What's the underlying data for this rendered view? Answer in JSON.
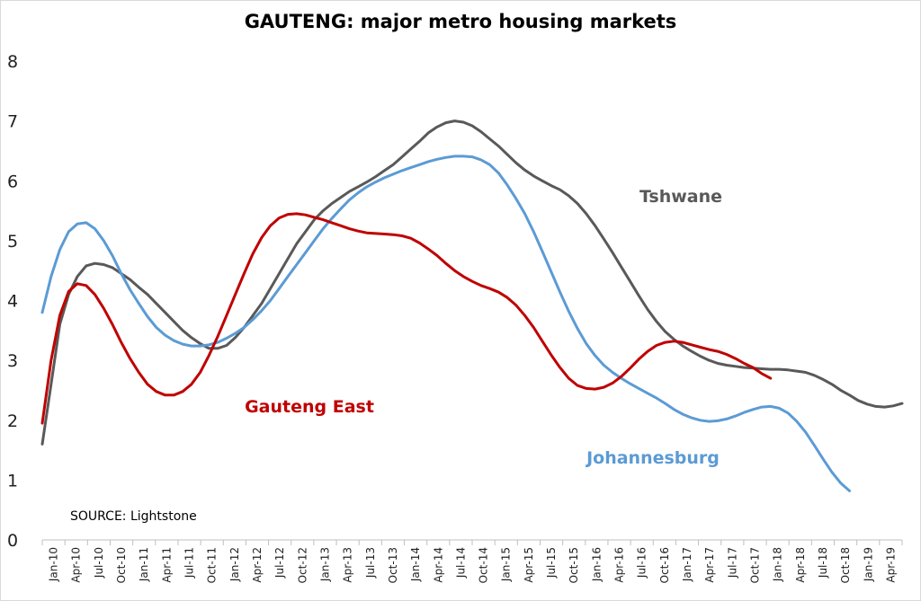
{
  "chart_data": {
    "type": "line",
    "title": "GAUTENG: major metro housing markets",
    "source": "SOURCE: Lightstone",
    "ylim": [
      0,
      8
    ],
    "yticks": [
      0,
      1,
      2,
      3,
      4,
      5,
      6,
      7,
      8
    ],
    "x_tick_labels": [
      "Jan-10",
      "Apr-10",
      "Jul-10",
      "Oct-10",
      "Jan-11",
      "Apr-11",
      "Jul-11",
      "Oct-11",
      "Jan-12",
      "Apr-12",
      "Jul-12",
      "Oct-12",
      "Jan-13",
      "Apr-13",
      "Jul-13",
      "Oct-13",
      "Jan-14",
      "Apr-14",
      "Jul-14",
      "Oct-14",
      "Jan-15",
      "Apr-15",
      "Jul-15",
      "Oct-15",
      "Jan-16",
      "Apr-16",
      "Jul-16",
      "Oct-16",
      "Jan-17",
      "Apr-17",
      "Jul-17",
      "Oct-17",
      "Jan-18",
      "Apr-18",
      "Jul-18",
      "Oct-18",
      "Jan-19",
      "Apr-19"
    ],
    "grid": false,
    "series": [
      {
        "name": "Tshwane",
        "color": "#595959",
        "points": [
          [
            0,
            1.6
          ],
          [
            1,
            2.6
          ],
          [
            2,
            3.6
          ],
          [
            3,
            4.1
          ],
          [
            4,
            4.4
          ],
          [
            5,
            4.58
          ],
          [
            6,
            4.62
          ],
          [
            7,
            4.6
          ],
          [
            8,
            4.55
          ],
          [
            9,
            4.45
          ],
          [
            10,
            4.35
          ],
          [
            11,
            4.22
          ],
          [
            12,
            4.1
          ],
          [
            13,
            3.95
          ],
          [
            14,
            3.8
          ],
          [
            15,
            3.65
          ],
          [
            16,
            3.5
          ],
          [
            17,
            3.38
          ],
          [
            18,
            3.28
          ],
          [
            19,
            3.2
          ],
          [
            20,
            3.2
          ],
          [
            21,
            3.25
          ],
          [
            22,
            3.38
          ],
          [
            23,
            3.55
          ],
          [
            24,
            3.75
          ],
          [
            25,
            3.95
          ],
          [
            26,
            4.2
          ],
          [
            27,
            4.45
          ],
          [
            28,
            4.7
          ],
          [
            29,
            4.95
          ],
          [
            30,
            5.15
          ],
          [
            31,
            5.35
          ],
          [
            32,
            5.5
          ],
          [
            33,
            5.62
          ],
          [
            34,
            5.72
          ],
          [
            35,
            5.82
          ],
          [
            36,
            5.9
          ],
          [
            37,
            5.98
          ],
          [
            38,
            6.07
          ],
          [
            39,
            6.17
          ],
          [
            40,
            6.27
          ],
          [
            41,
            6.4
          ],
          [
            42,
            6.53
          ],
          [
            43,
            6.66
          ],
          [
            44,
            6.8
          ],
          [
            45,
            6.9
          ],
          [
            46,
            6.97
          ],
          [
            47,
            7.0
          ],
          [
            48,
            6.98
          ],
          [
            49,
            6.92
          ],
          [
            50,
            6.82
          ],
          [
            51,
            6.7
          ],
          [
            52,
            6.58
          ],
          [
            53,
            6.44
          ],
          [
            54,
            6.3
          ],
          [
            55,
            6.18
          ],
          [
            56,
            6.08
          ],
          [
            57,
            6.0
          ],
          [
            58,
            5.92
          ],
          [
            59,
            5.85
          ],
          [
            60,
            5.75
          ],
          [
            61,
            5.62
          ],
          [
            62,
            5.45
          ],
          [
            63,
            5.25
          ],
          [
            64,
            5.03
          ],
          [
            65,
            4.8
          ],
          [
            66,
            4.56
          ],
          [
            67,
            4.32
          ],
          [
            68,
            4.08
          ],
          [
            69,
            3.85
          ],
          [
            70,
            3.65
          ],
          [
            71,
            3.48
          ],
          [
            72,
            3.35
          ],
          [
            73,
            3.24
          ],
          [
            74,
            3.15
          ],
          [
            75,
            3.07
          ],
          [
            76,
            3.0
          ],
          [
            77,
            2.95
          ],
          [
            78,
            2.92
          ],
          [
            79,
            2.9
          ],
          [
            80,
            2.88
          ],
          [
            81,
            2.87
          ],
          [
            82,
            2.86
          ],
          [
            83,
            2.85
          ],
          [
            84,
            2.85
          ],
          [
            85,
            2.84
          ],
          [
            86,
            2.82
          ],
          [
            87,
            2.8
          ],
          [
            88,
            2.75
          ],
          [
            89,
            2.68
          ],
          [
            90,
            2.6
          ],
          [
            91,
            2.5
          ],
          [
            92,
            2.42
          ],
          [
            93,
            2.33
          ],
          [
            94,
            2.27
          ],
          [
            95,
            2.23
          ],
          [
            96,
            2.22
          ],
          [
            97,
            2.24
          ],
          [
            98,
            2.28
          ]
        ]
      },
      {
        "name": "Johannesburg",
        "color": "#5b9bd5",
        "points": [
          [
            0,
            3.8
          ],
          [
            1,
            4.4
          ],
          [
            2,
            4.85
          ],
          [
            3,
            5.15
          ],
          [
            4,
            5.28
          ],
          [
            5,
            5.3
          ],
          [
            6,
            5.2
          ],
          [
            7,
            5.0
          ],
          [
            8,
            4.75
          ],
          [
            9,
            4.45
          ],
          [
            10,
            4.18
          ],
          [
            11,
            3.95
          ],
          [
            12,
            3.73
          ],
          [
            13,
            3.55
          ],
          [
            14,
            3.42
          ],
          [
            15,
            3.33
          ],
          [
            16,
            3.27
          ],
          [
            17,
            3.24
          ],
          [
            18,
            3.24
          ],
          [
            19,
            3.26
          ],
          [
            20,
            3.3
          ],
          [
            21,
            3.37
          ],
          [
            22,
            3.45
          ],
          [
            23,
            3.55
          ],
          [
            24,
            3.68
          ],
          [
            25,
            3.83
          ],
          [
            26,
            4.0
          ],
          [
            27,
            4.2
          ],
          [
            28,
            4.4
          ],
          [
            29,
            4.6
          ],
          [
            30,
            4.8
          ],
          [
            31,
            5.0
          ],
          [
            32,
            5.2
          ],
          [
            33,
            5.37
          ],
          [
            34,
            5.53
          ],
          [
            35,
            5.68
          ],
          [
            36,
            5.8
          ],
          [
            37,
            5.9
          ],
          [
            38,
            5.98
          ],
          [
            39,
            6.05
          ],
          [
            40,
            6.11
          ],
          [
            41,
            6.17
          ],
          [
            42,
            6.22
          ],
          [
            43,
            6.27
          ],
          [
            44,
            6.32
          ],
          [
            45,
            6.36
          ],
          [
            46,
            6.39
          ],
          [
            47,
            6.41
          ],
          [
            48,
            6.41
          ],
          [
            49,
            6.4
          ],
          [
            50,
            6.35
          ],
          [
            51,
            6.27
          ],
          [
            52,
            6.13
          ],
          [
            53,
            5.93
          ],
          [
            54,
            5.7
          ],
          [
            55,
            5.45
          ],
          [
            56,
            5.15
          ],
          [
            57,
            4.82
          ],
          [
            58,
            4.48
          ],
          [
            59,
            4.14
          ],
          [
            60,
            3.82
          ],
          [
            61,
            3.53
          ],
          [
            62,
            3.28
          ],
          [
            63,
            3.08
          ],
          [
            64,
            2.92
          ],
          [
            65,
            2.8
          ],
          [
            66,
            2.7
          ],
          [
            67,
            2.61
          ],
          [
            68,
            2.53
          ],
          [
            69,
            2.45
          ],
          [
            70,
            2.37
          ],
          [
            71,
            2.28
          ],
          [
            72,
            2.18
          ],
          [
            73,
            2.1
          ],
          [
            74,
            2.04
          ],
          [
            75,
            2.0
          ],
          [
            76,
            1.98
          ],
          [
            77,
            1.99
          ],
          [
            78,
            2.02
          ],
          [
            79,
            2.07
          ],
          [
            80,
            2.13
          ],
          [
            81,
            2.18
          ],
          [
            82,
            2.22
          ],
          [
            83,
            2.23
          ],
          [
            84,
            2.2
          ],
          [
            85,
            2.12
          ],
          [
            86,
            1.98
          ],
          [
            87,
            1.8
          ],
          [
            88,
            1.58
          ],
          [
            89,
            1.35
          ],
          [
            90,
            1.13
          ],
          [
            91,
            0.95
          ],
          [
            92,
            0.82
          ]
        ]
      },
      {
        "name": "Gauteng East",
        "color": "#c00000",
        "points": [
          [
            0,
            1.95
          ],
          [
            1,
            3.0
          ],
          [
            2,
            3.75
          ],
          [
            3,
            4.15
          ],
          [
            4,
            4.28
          ],
          [
            5,
            4.25
          ],
          [
            6,
            4.1
          ],
          [
            7,
            3.87
          ],
          [
            8,
            3.6
          ],
          [
            9,
            3.3
          ],
          [
            10,
            3.03
          ],
          [
            11,
            2.8
          ],
          [
            12,
            2.6
          ],
          [
            13,
            2.48
          ],
          [
            14,
            2.42
          ],
          [
            15,
            2.42
          ],
          [
            16,
            2.48
          ],
          [
            17,
            2.6
          ],
          [
            18,
            2.8
          ],
          [
            19,
            3.08
          ],
          [
            20,
            3.4
          ],
          [
            21,
            3.75
          ],
          [
            22,
            4.1
          ],
          [
            23,
            4.45
          ],
          [
            24,
            4.78
          ],
          [
            25,
            5.05
          ],
          [
            26,
            5.25
          ],
          [
            27,
            5.38
          ],
          [
            28,
            5.44
          ],
          [
            29,
            5.45
          ],
          [
            30,
            5.43
          ],
          [
            31,
            5.39
          ],
          [
            32,
            5.35
          ],
          [
            33,
            5.3
          ],
          [
            34,
            5.25
          ],
          [
            35,
            5.2
          ],
          [
            36,
            5.16
          ],
          [
            37,
            5.13
          ],
          [
            38,
            5.12
          ],
          [
            39,
            5.11
          ],
          [
            40,
            5.1
          ],
          [
            41,
            5.08
          ],
          [
            42,
            5.04
          ],
          [
            43,
            4.96
          ],
          [
            44,
            4.86
          ],
          [
            45,
            4.75
          ],
          [
            46,
            4.62
          ],
          [
            47,
            4.5
          ],
          [
            48,
            4.4
          ],
          [
            49,
            4.32
          ],
          [
            50,
            4.25
          ],
          [
            51,
            4.2
          ],
          [
            52,
            4.14
          ],
          [
            53,
            4.05
          ],
          [
            54,
            3.92
          ],
          [
            55,
            3.75
          ],
          [
            56,
            3.55
          ],
          [
            57,
            3.32
          ],
          [
            58,
            3.09
          ],
          [
            59,
            2.88
          ],
          [
            60,
            2.7
          ],
          [
            61,
            2.58
          ],
          [
            62,
            2.53
          ],
          [
            63,
            2.52
          ],
          [
            64,
            2.55
          ],
          [
            65,
            2.62
          ],
          [
            66,
            2.73
          ],
          [
            67,
            2.87
          ],
          [
            68,
            3.02
          ],
          [
            69,
            3.15
          ],
          [
            70,
            3.25
          ],
          [
            71,
            3.3
          ],
          [
            72,
            3.32
          ],
          [
            73,
            3.3
          ],
          [
            74,
            3.26
          ],
          [
            75,
            3.22
          ],
          [
            76,
            3.18
          ],
          [
            77,
            3.15
          ],
          [
            78,
            3.1
          ],
          [
            79,
            3.03
          ],
          [
            80,
            2.95
          ],
          [
            81,
            2.88
          ],
          [
            82,
            2.78
          ],
          [
            83,
            2.7
          ]
        ]
      }
    ]
  }
}
